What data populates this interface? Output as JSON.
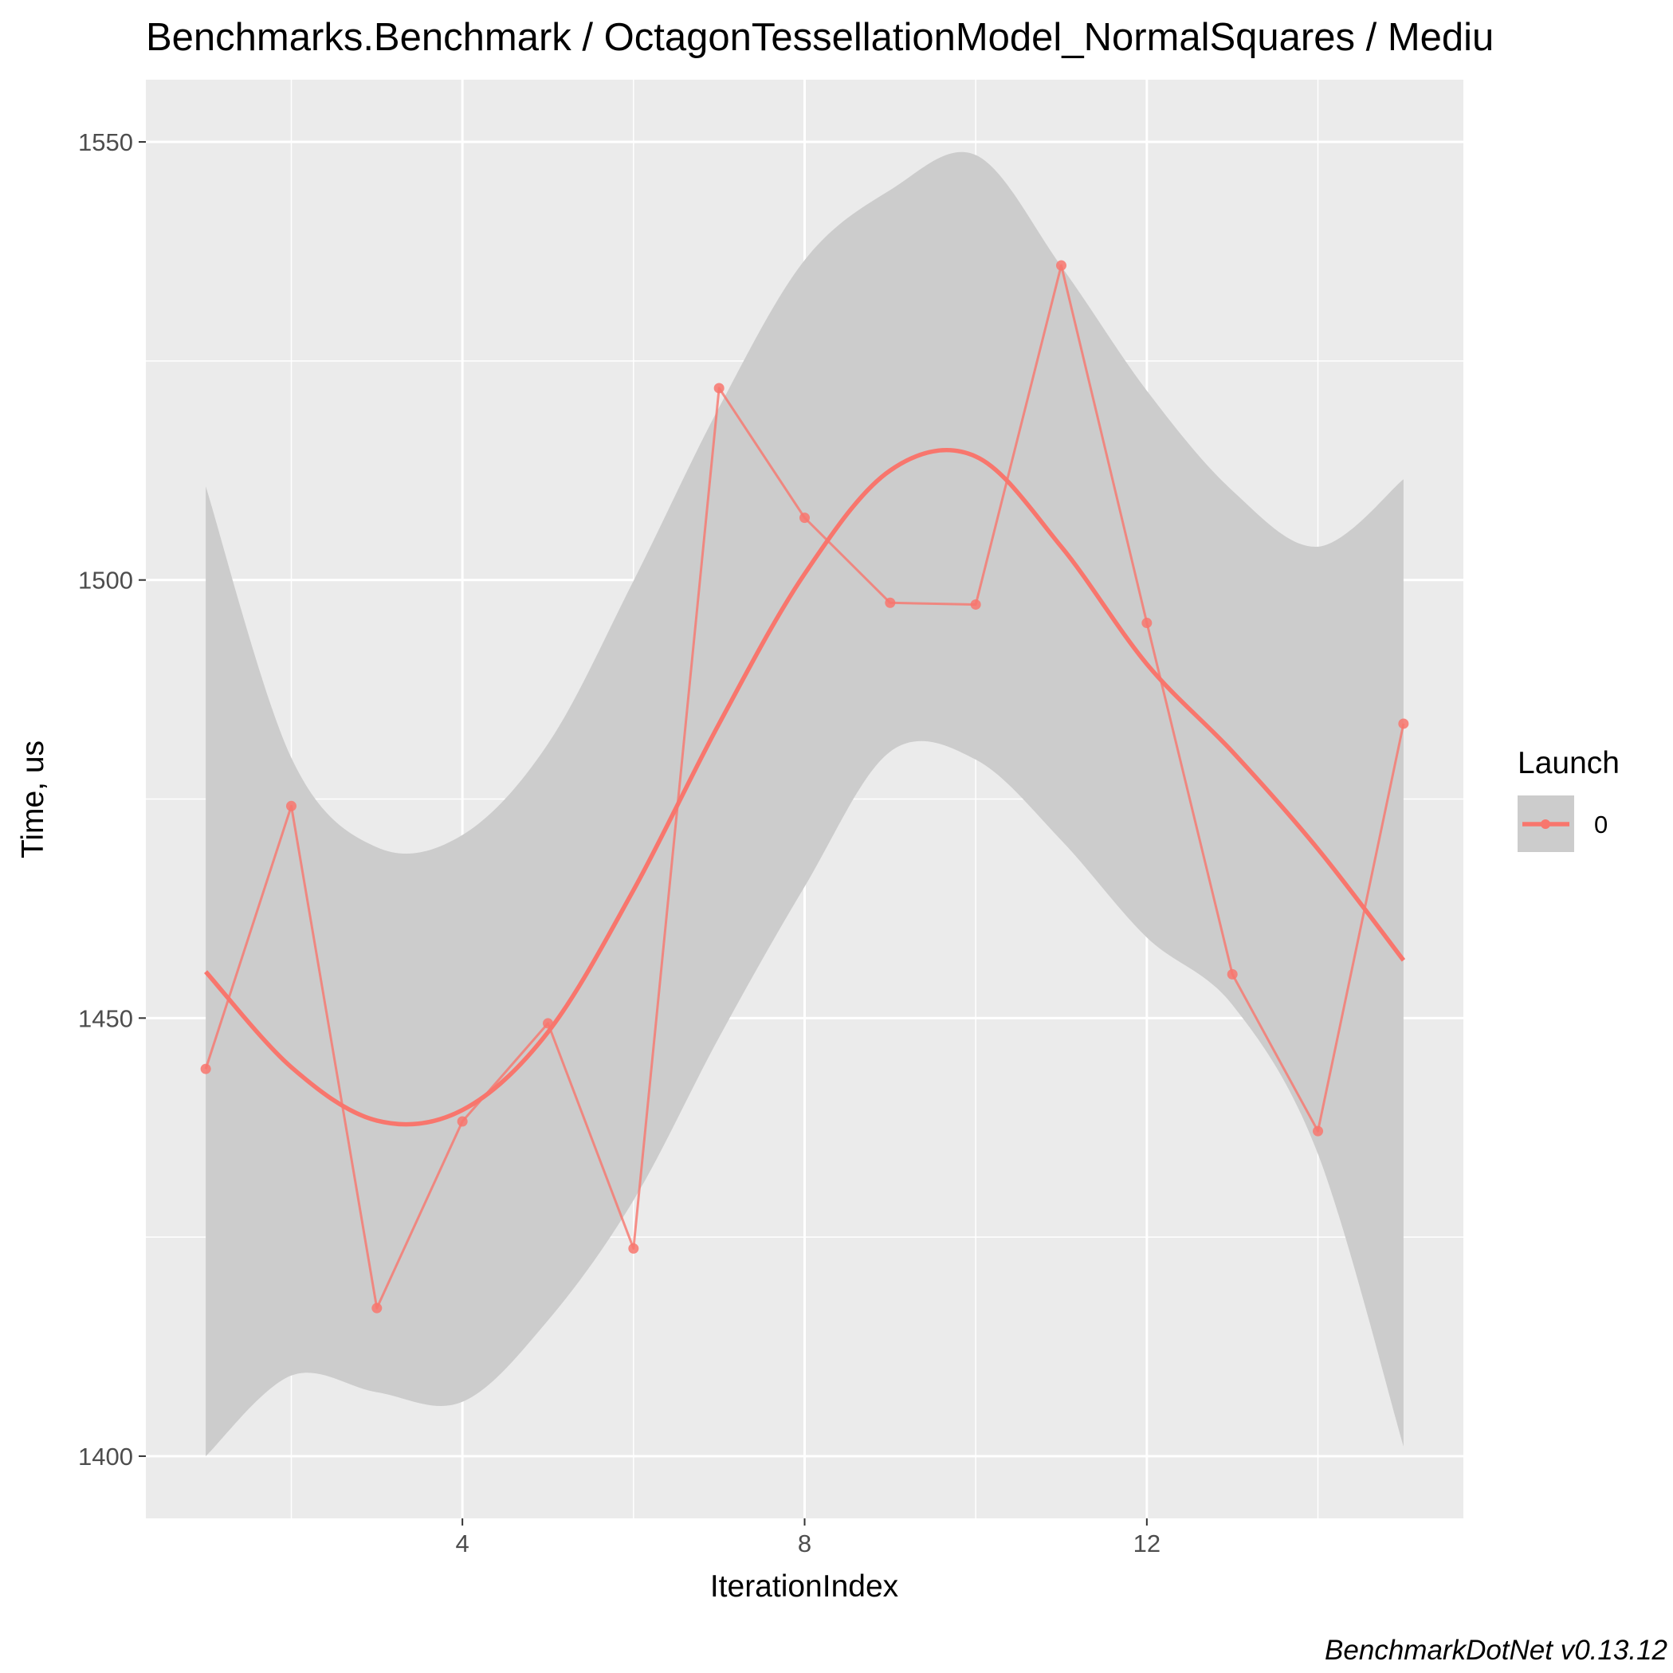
{
  "chart_data": {
    "type": "line",
    "title": "Benchmarks.Benchmark / OctagonTessellationModel_NormalSquares / Mediu",
    "xlabel": "IterationIndex",
    "ylabel": "Time, us",
    "caption": "BenchmarkDotNet v0.13.12",
    "xlim": [
      0.3,
      15.7
    ],
    "ylim": [
      1392.9,
      1557.1
    ],
    "x_ticks": [
      4,
      8,
      12
    ],
    "x_tick_labels": [
      "4",
      "8",
      "12"
    ],
    "y_ticks": [
      1400,
      1450,
      1500,
      1550
    ],
    "y_tick_labels": [
      "1400",
      "1450",
      "1500",
      "1550"
    ],
    "grid": true,
    "legend": {
      "title": "Launch",
      "placement": "right",
      "entries": [
        "0"
      ]
    },
    "colors": {
      "series": "#f8766d",
      "ribbon": "#cccccc",
      "panel": "#ebebeb",
      "grid": "#ffffff"
    },
    "series": [
      {
        "name": "0",
        "x": [
          1,
          2,
          3,
          4,
          5,
          6,
          7,
          8,
          9,
          10,
          11,
          12,
          13,
          14,
          15
        ],
        "values": [
          1444.2,
          1474.2,
          1416.9,
          1438.2,
          1449.4,
          1423.7,
          1521.9,
          1507.1,
          1497.4,
          1497.2,
          1535.9,
          1495.1,
          1455.0,
          1437.1,
          1483.6
        ]
      }
    ],
    "smooth": {
      "x": [
        1,
        2,
        3,
        4,
        5,
        6,
        7,
        8,
        9,
        10,
        11,
        12,
        13,
        14,
        15
      ],
      "fit": [
        1455.3,
        1444.4,
        1438.3,
        1439.5,
        1448.4,
        1464.6,
        1483.6,
        1500.7,
        1512.5,
        1514.1,
        1503.8,
        1490.4,
        1480.4,
        1469.3,
        1456.6
      ],
      "upper": [
        1510.7,
        1479.7,
        1469.5,
        1470.9,
        1481.3,
        1499.9,
        1519.7,
        1536.5,
        1544.5,
        1548.5,
        1535.8,
        1521.6,
        1510.2,
        1503.8,
        1511.5
      ],
      "lower": [
        1400.0,
        1409.2,
        1407.3,
        1406.2,
        1415.5,
        1429.2,
        1447.8,
        1465.0,
        1480.4,
        1479.5,
        1470.3,
        1459.2,
        1451.5,
        1434.5,
        1401.1
      ]
    }
  }
}
